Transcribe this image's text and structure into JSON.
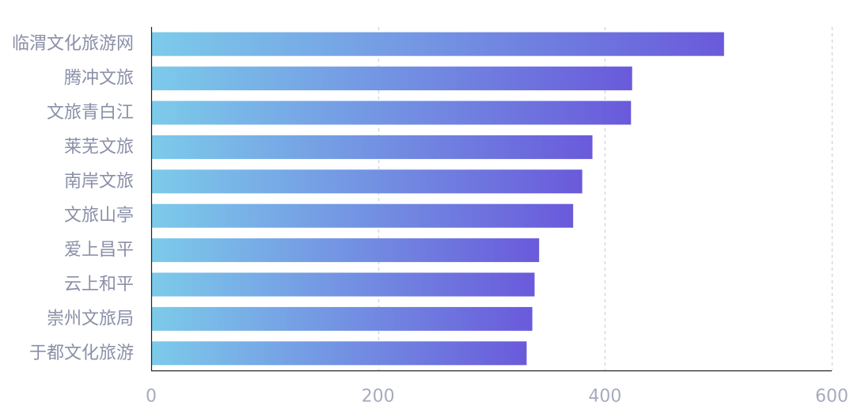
{
  "chart_data": {
    "type": "bar",
    "orientation": "horizontal",
    "categories": [
      "临渭文化旅游网",
      "腾冲文旅",
      "文旅青白江",
      "莱芜文旅",
      "南岸文旅",
      "文旅山亭",
      "爱上昌平",
      "云上和平",
      "崇州文旅局",
      "于都文化旅游"
    ],
    "values": [
      505,
      424,
      423,
      389,
      380,
      372,
      342,
      338,
      336,
      331
    ],
    "xlim": [
      0,
      600
    ],
    "xticks": [
      0,
      200,
      400,
      600
    ],
    "grid": true,
    "legend": "none",
    "colors": {
      "bar_start": "#7ccbea",
      "bar_end": "#6a5adb",
      "grid": "#d6d8e0",
      "axis": "#222222"
    }
  }
}
